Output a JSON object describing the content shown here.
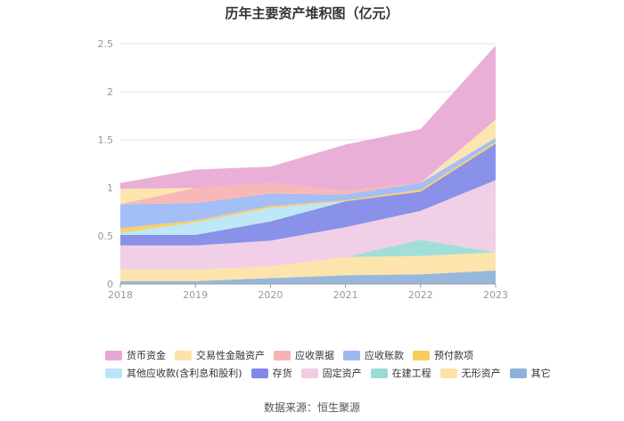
{
  "title": "历年主要资产堆积图（亿元）",
  "source": "数据来源：恒生聚源",
  "chart_data": {
    "type": "area",
    "stacked": true,
    "x": [
      "2018",
      "2019",
      "2020",
      "2021",
      "2022",
      "2023"
    ],
    "ylim": [
      0,
      2.5
    ],
    "yticks": [
      "0",
      "0.5",
      "1",
      "1.5",
      "2",
      "2.5"
    ],
    "grid": true,
    "legend_position": "bottom",
    "series": [
      {
        "name": "其它",
        "color": "#8fb1d9",
        "values": [
          0.03,
          0.03,
          0.06,
          0.09,
          0.1,
          0.14
        ]
      },
      {
        "name": "无形资产",
        "color": "#fde2a5",
        "values": [
          0.12,
          0.12,
          0.12,
          0.19,
          0.19,
          0.19
        ]
      },
      {
        "name": "在建工程",
        "color": "#9adbd6",
        "values": [
          0.0,
          0.0,
          0.0,
          0.0,
          0.17,
          0.0
        ]
      },
      {
        "name": "固定资产",
        "color": "#f0cbe4",
        "values": [
          0.25,
          0.25,
          0.27,
          0.31,
          0.3,
          0.75
        ]
      },
      {
        "name": "存货",
        "color": "#7f88e6",
        "values": [
          0.11,
          0.11,
          0.2,
          0.27,
          0.2,
          0.38
        ]
      },
      {
        "name": "其他应收款(含利息和股利)",
        "color": "#b9e5f7",
        "values": [
          0.02,
          0.13,
          0.14,
          0.0,
          0.0,
          0.0
        ]
      },
      {
        "name": "预付款项",
        "color": "#f9cc5b",
        "values": [
          0.05,
          0.02,
          0.02,
          0.01,
          0.02,
          0.02
        ]
      },
      {
        "name": "应收账款",
        "color": "#9cb8f5",
        "values": [
          0.25,
          0.18,
          0.13,
          0.06,
          0.07,
          0.04
        ]
      },
      {
        "name": "应收票据",
        "color": "#f7b2b2",
        "values": [
          0.0,
          0.16,
          0.11,
          0.04,
          0.0,
          0.0
        ]
      },
      {
        "name": "交易性金融资产",
        "color": "#fde3a8",
        "values": [
          0.16,
          0.0,
          0.0,
          0.0,
          0.0,
          0.19
        ]
      },
      {
        "name": "货币资金",
        "color": "#e7a8d4",
        "values": [
          0.06,
          0.19,
          0.17,
          0.48,
          0.56,
          0.77
        ]
      }
    ]
  },
  "legend_rows": [
    [
      "货币资金",
      "交易性金融资产",
      "应收票据",
      "应收账款",
      "预付款项"
    ],
    [
      "其他应收款(含利息和股利)",
      "存货",
      "固定资产",
      "在建工程",
      "无形资产",
      "其它"
    ]
  ]
}
